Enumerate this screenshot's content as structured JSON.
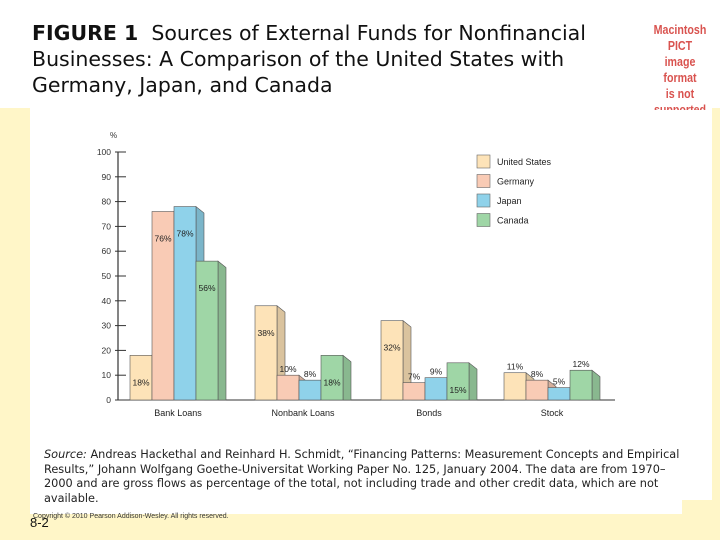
{
  "title": {
    "figure_label": "FIGURE 1",
    "text": "Sources of External Funds for Nonfinancial Businesses: A Comparison of the United States with Germany, Japan, and Canada"
  },
  "pict_notice": {
    "line1": "Macintosh PICT",
    "line2": "image format",
    "line3": "is not supported"
  },
  "chart_data": {
    "type": "bar",
    "title": "",
    "ylabel": "%",
    "xlabel": "",
    "ylim": [
      0,
      100
    ],
    "yticks": [
      0,
      10,
      20,
      30,
      40,
      50,
      60,
      70,
      80,
      90,
      100
    ],
    "categories": [
      "Bank Loans",
      "Nonbank Loans",
      "Bonds",
      "Stock"
    ],
    "series": [
      {
        "name": "United States",
        "color": "#fde3b8",
        "values": [
          18,
          38,
          32,
          11
        ],
        "labels": [
          "18%",
          "38%",
          "32%",
          "11%"
        ]
      },
      {
        "name": "Germany",
        "color": "#f9cbb5",
        "values": [
          76,
          10,
          7,
          8
        ],
        "labels": [
          "76%",
          "10%",
          "7%",
          "8%"
        ]
      },
      {
        "name": "Japan",
        "color": "#8fd2ea",
        "values": [
          78,
          8,
          9,
          5
        ],
        "labels": [
          "78%",
          "8%",
          "9%",
          "5%"
        ]
      },
      {
        "name": "Canada",
        "color": "#9fd6a6",
        "values": [
          56,
          18,
          15,
          12
        ],
        "labels": [
          "56%",
          "18%",
          "15%",
          "12%"
        ]
      }
    ],
    "legend_position": "top-right"
  },
  "source": {
    "label": "Source:",
    "text": "Andreas Hackethal and Reinhard H. Schmidt, “Financing Patterns: Measurement Concepts and Empirical Results,” Johann Wolfgang Goethe-Universitat Working Paper No. 125, January 2004. The data are from 1970–2000 and are gross flows as percentage of the total, not including trade and other credit data, which are not available."
  },
  "footer": {
    "copyright": "Copyright © 2010 Pearson Addison-Wesley. All rights reserved.",
    "slide_number": "8-2"
  }
}
